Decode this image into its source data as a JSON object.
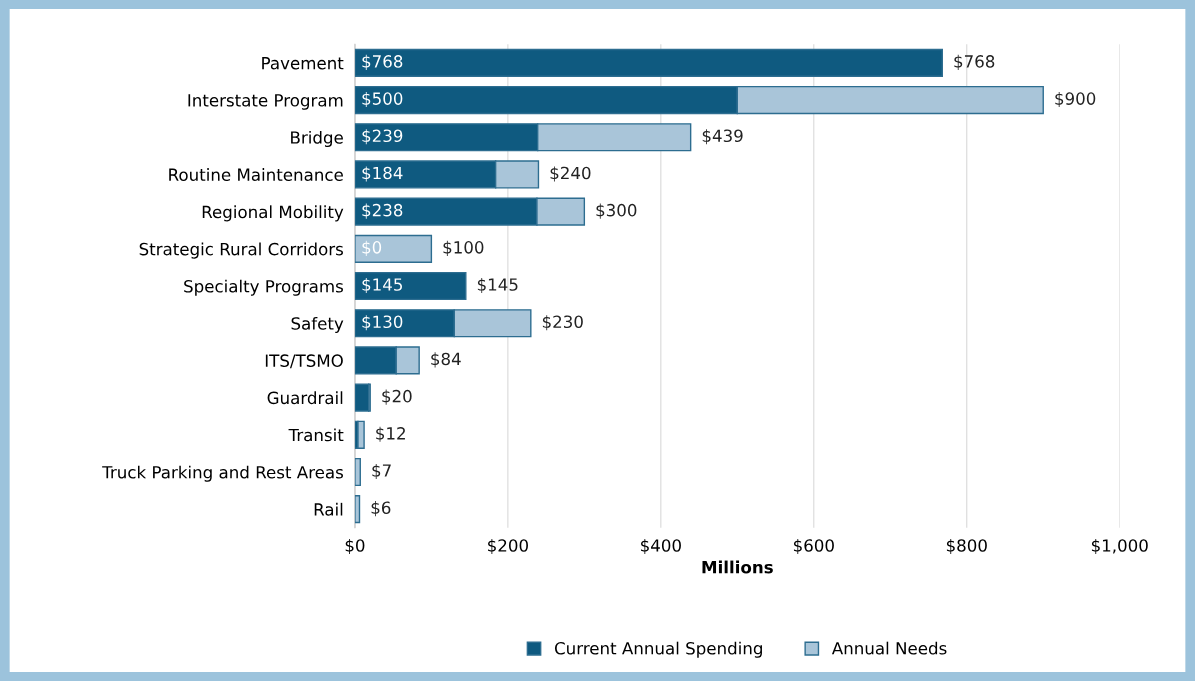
{
  "chart_data": {
    "type": "bar",
    "orientation": "horizontal",
    "stacked": true,
    "categories": [
      "Pavement",
      "Interstate Program",
      "Bridge",
      "Routine Maintenance",
      "Regional Mobility",
      "Strategic Rural Corridors",
      "Specialty Programs",
      "Safety",
      "ITS/TSMO",
      "Guardrail",
      "Transit",
      "Truck Parking and Rest Areas",
      "Rail"
    ],
    "series": [
      {
        "name": "Current Annual Spending",
        "color": "#0f5a80",
        "values": [
          768,
          500,
          239,
          184,
          238,
          0,
          145,
          130,
          54,
          18,
          4,
          0,
          0
        ],
        "value_labels": [
          "$768",
          "$500",
          "$239",
          "$184",
          "$238",
          "$0",
          "$145",
          "$130",
          null,
          null,
          null,
          null,
          null
        ]
      },
      {
        "name": "Annual Needs",
        "color": "#a9c5d9",
        "values": [
          0,
          400,
          200,
          56,
          62,
          100,
          0,
          100,
          30,
          2,
          8,
          7,
          6
        ]
      }
    ],
    "totals": [
      "$768",
      "$900",
      "$439",
      "$240",
      "$300",
      "$100",
      "$145",
      "$230",
      "$84",
      "$20",
      "$12",
      "$7",
      "$6"
    ],
    "xlabel": "Millions",
    "xlim": [
      0,
      1000
    ],
    "xticks": [
      {
        "value": 0,
        "label": "$0"
      },
      {
        "value": 200,
        "label": "$200"
      },
      {
        "value": 400,
        "label": "$400"
      },
      {
        "value": 600,
        "label": "$600"
      },
      {
        "value": 800,
        "label": "$800"
      },
      {
        "value": 1000,
        "label": "$1,000"
      }
    ],
    "grid": "x",
    "legend": "bottom"
  }
}
